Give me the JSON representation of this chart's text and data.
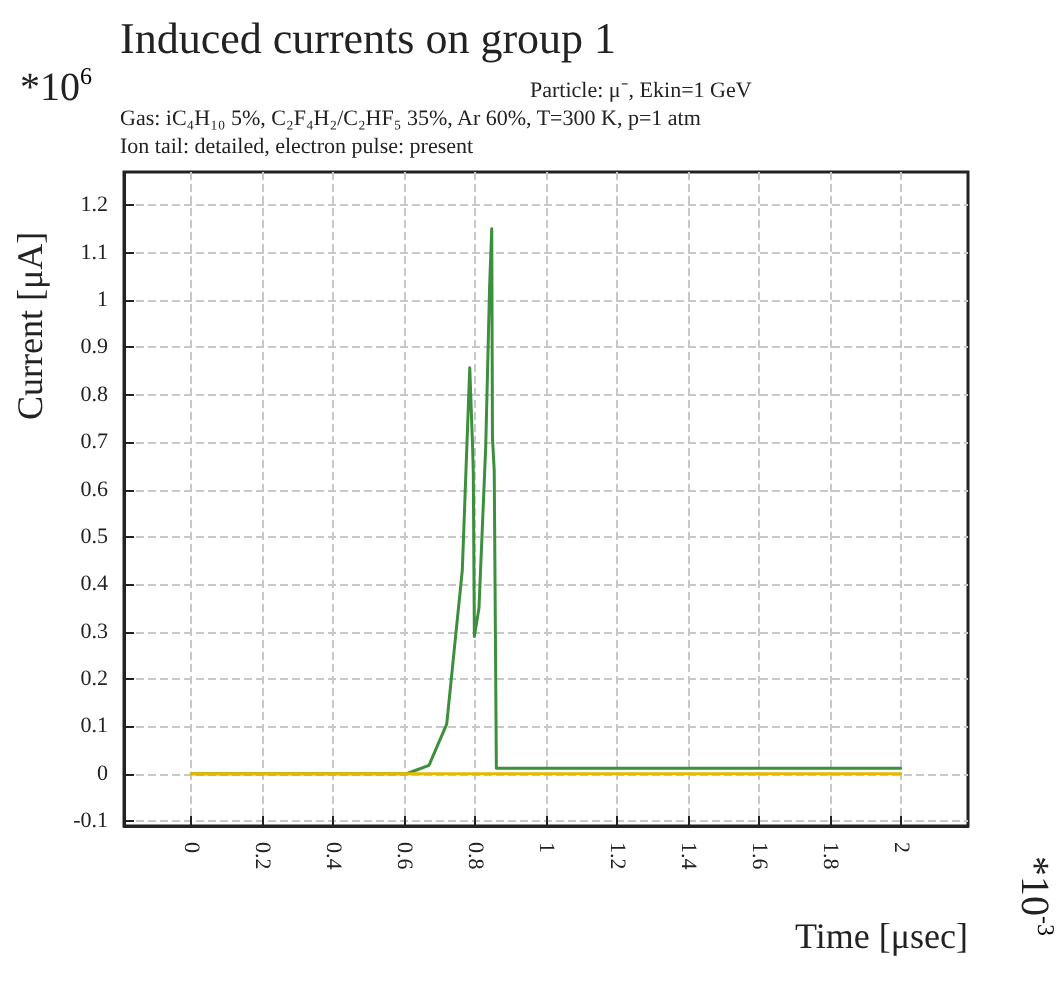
{
  "chart_data": {
    "type": "line",
    "title": "Induced currents on group 1",
    "subtitle": "Particle: μ⁻, Ekin=1 GeV",
    "annotations": [
      "Gas: iC₄H₁₀ 5%, C₂F₄H₂/C₂HF₅ 35%, Ar 60%, T=300 K, p=1 atm",
      "Ion tail: detailed, electron pulse: present",
      "*10$^{6}$",
      "*10$^{-3}$"
    ],
    "xlabel": "Time [μsec]",
    "ylabel": "Current [μA]",
    "series": [
      {
        "color": "#3c8f3c",
        "x": [
          0,
          0.605,
          0.62,
          0.67,
          0.72,
          0.764,
          0.785,
          0.793,
          0.795,
          0.798,
          0.811,
          0.83,
          0.841,
          0.847,
          0.849,
          0.854,
          0.86,
          2
        ],
        "values": [
          0,
          0,
          0.004,
          0.018,
          0.105,
          0.43,
          0.857,
          0.69,
          0.635,
          0.29,
          0.35,
          0.69,
          1.03,
          1.15,
          0.71,
          0.64,
          0.012,
          0.012
        ]
      },
      {
        "color": "#e6b800",
        "x": [
          0,
          2
        ],
        "values": [
          0,
          0
        ]
      }
    ],
    "xlim": [
      -0.19,
      2.19
    ],
    "ylim": [
      -0.11,
      1.27
    ],
    "xticks": [
      0,
      0.2,
      0.4,
      0.6,
      0.8,
      1,
      1.2,
      1.4,
      1.6,
      1.8,
      2
    ],
    "yticks": [
      -0.1,
      0,
      0.1,
      0.2,
      0.3,
      0.4,
      0.5,
      0.6,
      0.7,
      0.8,
      0.9,
      1,
      1.1,
      1.2
    ],
    "grid": true,
    "marker": "none",
    "line_style": "solid"
  }
}
